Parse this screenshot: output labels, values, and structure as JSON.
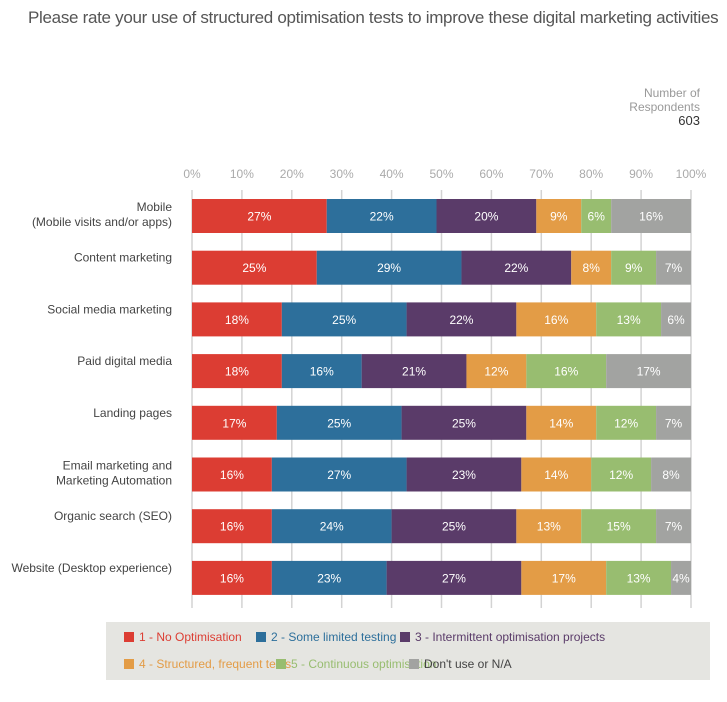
{
  "respondents": {
    "label_line1": "Number of",
    "label_line2": "Respondents",
    "count": "603"
  },
  "chart_data": {
    "type": "bar",
    "orientation": "horizontal-stacked-100",
    "title": "Please rate your use of structured optimisation tests to improve these digital marketing activities",
    "xlabel": "",
    "ylabel": "",
    "xlim": [
      0,
      100
    ],
    "x_ticks": [
      "0%",
      "10%",
      "20%",
      "30%",
      "40%",
      "50%",
      "60%",
      "70%",
      "80%",
      "90%",
      "100%"
    ],
    "grid": true,
    "legend_position": "bottom",
    "categories": [
      [
        "Mobile",
        "(Mobile visits and/or apps)"
      ],
      [
        "Content marketing"
      ],
      [
        "Social media marketing"
      ],
      [
        "Paid digital media"
      ],
      [
        "Landing pages"
      ],
      [
        "Email marketing and",
        "Marketing Automation"
      ],
      [
        "Organic search (SEO)"
      ],
      [
        "Website (Desktop experience)"
      ]
    ],
    "series": [
      {
        "name": "1 - No Optimisation",
        "color": "#dc3d33",
        "values": [
          27,
          25,
          18,
          18,
          17,
          16,
          16,
          16
        ]
      },
      {
        "name": "2 - Some limited testing",
        "color": "#2d6f9b",
        "values": [
          22,
          29,
          25,
          16,
          25,
          27,
          24,
          23
        ]
      },
      {
        "name": "3 - Intermittent optimisation projects",
        "color": "#5a3b69",
        "values": [
          20,
          22,
          22,
          21,
          25,
          23,
          25,
          27
        ]
      },
      {
        "name": "4 - Structured, frequent tests",
        "color": "#e39c46",
        "values": [
          9,
          8,
          16,
          12,
          14,
          14,
          13,
          17
        ]
      },
      {
        "name": "5 - Continuous optimisation",
        "color": "#98bd70",
        "values": [
          6,
          9,
          13,
          16,
          12,
          12,
          15,
          13
        ]
      },
      {
        "name": "Don't use or N/A",
        "color": "#a2a3a1",
        "values": [
          16,
          7,
          6,
          17,
          7,
          8,
          7,
          4
        ]
      }
    ]
  }
}
